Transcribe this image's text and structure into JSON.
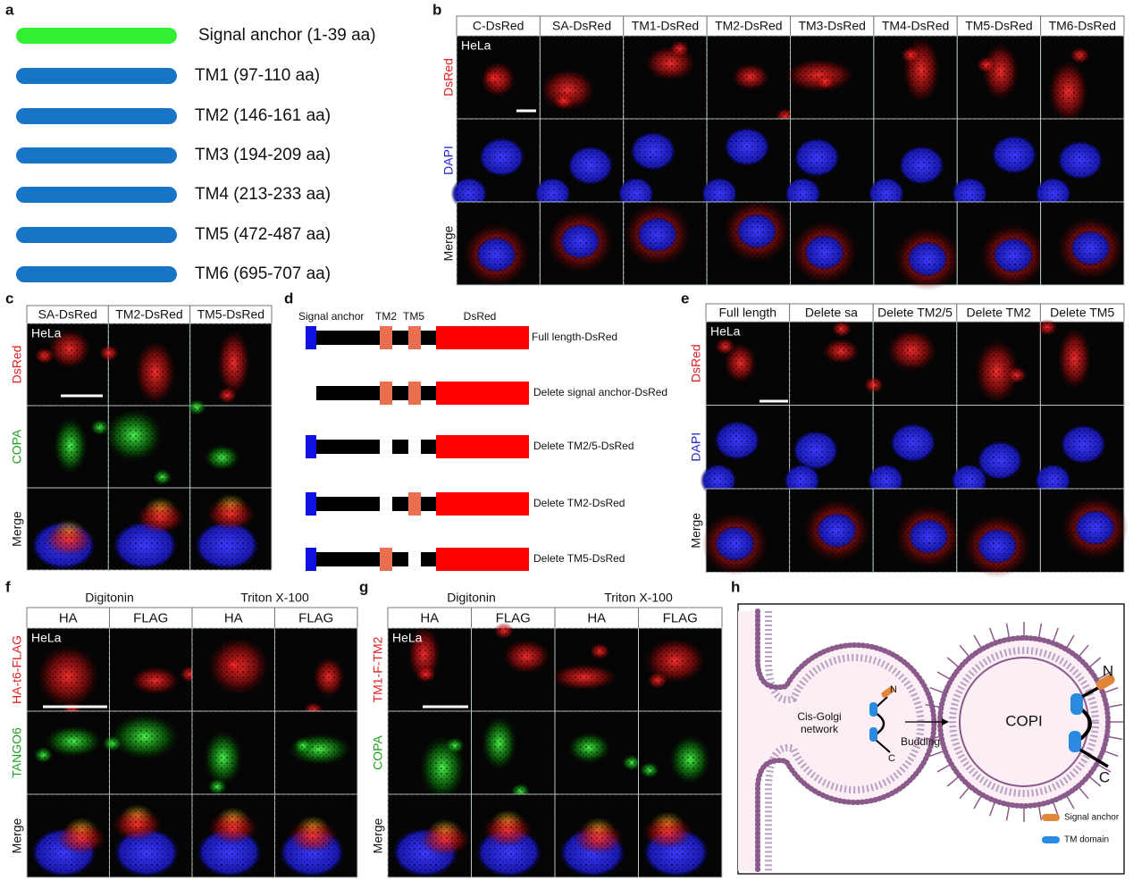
{
  "a": {
    "letter": "a",
    "items": [
      {
        "label": "Signal anchor (1-39 aa)",
        "color": "#33ee33"
      },
      {
        "label": "TM1 (97-110 aa)",
        "color": "#1874c4"
      },
      {
        "label": "TM2 (146-161 aa)",
        "color": "#1874c4"
      },
      {
        "label": "TM3 (194-209 aa)",
        "color": "#1874c4"
      },
      {
        "label": "TM4 (213-233 aa)",
        "color": "#1874c4"
      },
      {
        "label": "TM5 (472-487 aa)",
        "color": "#1874c4"
      },
      {
        "label": "TM6 (695-707 aa)",
        "color": "#1874c4"
      }
    ]
  },
  "b": {
    "letter": "b",
    "columns": [
      "C-DsRed",
      "SA-DsRed",
      "TM1-DsRed",
      "TM2-DsRed",
      "TM3-DsRed",
      "TM4-DsRed",
      "TM5-DsRed",
      "TM6-DsRed"
    ],
    "rows": [
      {
        "label": "DsRed",
        "color": "#e02020"
      },
      {
        "label": "DAPI",
        "color": "#2424d0"
      },
      {
        "label": "Merge",
        "color": "#111111"
      }
    ],
    "cell_label": "HeLa"
  },
  "c": {
    "letter": "c",
    "columns": [
      "SA-DsRed",
      "TM2-DsRed",
      "TM5-DsRed"
    ],
    "rows": [
      {
        "label": "DsRed",
        "color": "#e02020"
      },
      {
        "label": "COPA",
        "color": "#20a020"
      },
      {
        "label": "Merge",
        "color": "#111111"
      }
    ],
    "cell_label": "HeLa"
  },
  "d": {
    "letter": "d",
    "headers": {
      "signal_anchor": "Signal anchor",
      "tm2": "TM2",
      "tm5": "TM5",
      "dsred": "DsRed"
    },
    "constructs": [
      "Full length-DsRed",
      "Delete signal anchor-DsRed",
      "Delete TM2/5-DsRed",
      "Delete TM2-DsRed",
      "Delete TM5-DsRed"
    ]
  },
  "e": {
    "letter": "e",
    "columns": [
      "Full length",
      "Delete sa",
      "Delete TM2/5",
      "Delete TM2",
      "Delete TM5"
    ],
    "rows": [
      {
        "label": "DsRed",
        "color": "#e02020"
      },
      {
        "label": "DAPI",
        "color": "#2424d0"
      },
      {
        "label": "Merge",
        "color": "#111111"
      }
    ],
    "cell_label": "HeLa"
  },
  "f": {
    "letter": "f",
    "groups": [
      "Digitonin",
      "Triton X-100"
    ],
    "columns": [
      "HA",
      "FLAG",
      "HA",
      "FLAG"
    ],
    "rows": [
      {
        "label": "HA-t6-FLAG",
        "color": "#e02020"
      },
      {
        "label": "TANGO6",
        "color": "#20a020"
      },
      {
        "label": "Merge",
        "color": "#111111"
      }
    ],
    "cell_label": "HeLa"
  },
  "g": {
    "letter": "g",
    "groups": [
      "Digitonin",
      "Triton X-100"
    ],
    "columns": [
      "HA",
      "FLAG",
      "HA",
      "FLAG"
    ],
    "rows": [
      {
        "label": "TM1-F-TM2",
        "color": "#e02020"
      },
      {
        "label": "COPA",
        "color": "#20a020"
      },
      {
        "label": "Merge",
        "color": "#111111"
      }
    ],
    "cell_label": "HeLa"
  },
  "h": {
    "letter": "h",
    "network": [
      "Cis-Golgi",
      "network"
    ],
    "arrow_label": "Budding",
    "vesicle": "COPI",
    "n_small": "N",
    "c_small": "C",
    "n_large": "N",
    "c_large": "C",
    "legend": [
      {
        "label": "Signal anchor",
        "color": "#e0853a"
      },
      {
        "label": "TM domain",
        "color": "#2a8ae0"
      }
    ]
  }
}
